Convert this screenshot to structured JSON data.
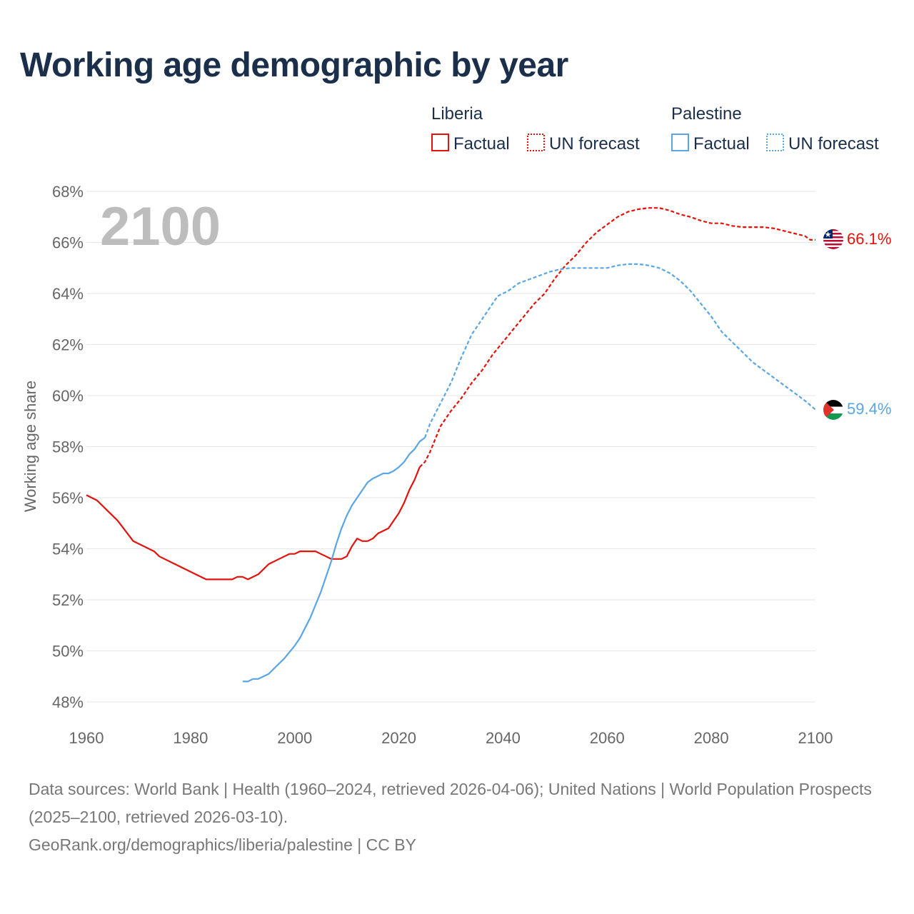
{
  "title": "Working age demographic by year",
  "footer": {
    "sources": "Data sources: World Bank | Health (1960–2024, retrieved 2026-04-06); United Nations | World Population Prospects (2025–2100, retrieved 2026-03-10).",
    "credit": "GeoRank.org/demographics/liberia/palestine | CC BY"
  },
  "colors": {
    "liberia": "#e3120b",
    "palestine": "#5aa5e3",
    "grid": "#e6e6e6",
    "text": "#1b2f4b"
  },
  "icons": {
    "liberia": "liberia-flag-icon",
    "palestine": "palestine-flag-icon"
  },
  "chart_data": {
    "type": "line",
    "title": "Working age demographic by year",
    "xlabel": "",
    "ylabel": "Working age share",
    "xlim": [
      1960,
      2100
    ],
    "ylim": [
      48,
      68
    ],
    "x_ticks": [
      "1960",
      "1980",
      "2000",
      "2020",
      "2040",
      "2060",
      "2080",
      "2100"
    ],
    "y_ticks": [
      "48%",
      "50%",
      "52%",
      "54%",
      "56%",
      "58%",
      "60%",
      "62%",
      "64%",
      "66%",
      "68%"
    ],
    "current_year": "2100",
    "legend": {
      "groups": [
        {
          "name": "Liberia",
          "factual": "Factual",
          "forecast": "UN forecast"
        },
        {
          "name": "Palestine",
          "factual": "Factual",
          "forecast": "UN forecast"
        }
      ]
    },
    "series": [
      {
        "name": "Liberia",
        "color": "#e3120b",
        "end_label": "66.1%",
        "factual": [
          [
            1960,
            56.1
          ],
          [
            1962,
            55.9
          ],
          [
            1963,
            55.7
          ],
          [
            1966,
            55.1
          ],
          [
            1969,
            54.3
          ],
          [
            1973,
            53.9
          ],
          [
            1974,
            53.7
          ],
          [
            1977,
            53.4
          ],
          [
            1980,
            53.1
          ],
          [
            1983,
            52.8
          ],
          [
            1988,
            52.8
          ],
          [
            1989,
            52.9
          ],
          [
            1990,
            52.9
          ],
          [
            1991,
            52.8
          ],
          [
            1993,
            53.0
          ],
          [
            1995,
            53.4
          ],
          [
            1997,
            53.6
          ],
          [
            1999,
            53.8
          ],
          [
            2000,
            53.8
          ],
          [
            2001,
            53.9
          ],
          [
            2004,
            53.9
          ],
          [
            2005,
            53.8
          ],
          [
            2007,
            53.6
          ],
          [
            2009,
            53.6
          ],
          [
            2010,
            53.7
          ],
          [
            2011,
            54.1
          ],
          [
            2012,
            54.4
          ],
          [
            2013,
            54.3
          ],
          [
            2014,
            54.3
          ],
          [
            2015,
            54.4
          ],
          [
            2016,
            54.6
          ],
          [
            2018,
            54.8
          ],
          [
            2020,
            55.4
          ],
          [
            2021,
            55.8
          ],
          [
            2022,
            56.3
          ],
          [
            2023,
            56.7
          ],
          [
            2024,
            57.2
          ]
        ],
        "forecast": [
          [
            2024,
            57.2
          ],
          [
            2025,
            57.4
          ],
          [
            2026,
            57.8
          ],
          [
            2027,
            58.3
          ],
          [
            2028,
            58.8
          ],
          [
            2030,
            59.4
          ],
          [
            2032,
            59.9
          ],
          [
            2034,
            60.5
          ],
          [
            2036,
            61.0
          ],
          [
            2038,
            61.6
          ],
          [
            2040,
            62.1
          ],
          [
            2042,
            62.6
          ],
          [
            2044,
            63.1
          ],
          [
            2046,
            63.6
          ],
          [
            2048,
            64.0
          ],
          [
            2050,
            64.6
          ],
          [
            2052,
            65.1
          ],
          [
            2054,
            65.5
          ],
          [
            2056,
            66.0
          ],
          [
            2058,
            66.4
          ],
          [
            2060,
            66.7
          ],
          [
            2062,
            67.0
          ],
          [
            2064,
            67.2
          ],
          [
            2066,
            67.3
          ],
          [
            2068,
            67.35
          ],
          [
            2070,
            67.35
          ],
          [
            2072,
            67.25
          ],
          [
            2074,
            67.1
          ],
          [
            2076,
            67.0
          ],
          [
            2078,
            66.85
          ],
          [
            2080,
            66.75
          ],
          [
            2082,
            66.75
          ],
          [
            2084,
            66.65
          ],
          [
            2086,
            66.6
          ],
          [
            2088,
            66.6
          ],
          [
            2090,
            66.6
          ],
          [
            2092,
            66.55
          ],
          [
            2094,
            66.45
          ],
          [
            2096,
            66.35
          ],
          [
            2098,
            66.25
          ],
          [
            2099,
            66.1
          ],
          [
            2100,
            66.1
          ]
        ]
      },
      {
        "name": "Palestine",
        "color": "#5aa5e3",
        "end_label": "59.4%",
        "factual": [
          [
            1990,
            48.8
          ],
          [
            1991,
            48.8
          ],
          [
            1992,
            48.9
          ],
          [
            1993,
            48.9
          ],
          [
            1995,
            49.1
          ],
          [
            1996,
            49.3
          ],
          [
            1998,
            49.7
          ],
          [
            2000,
            50.2
          ],
          [
            2001,
            50.5
          ],
          [
            2003,
            51.3
          ],
          [
            2005,
            52.3
          ],
          [
            2007,
            53.5
          ],
          [
            2008,
            54.2
          ],
          [
            2009,
            54.8
          ],
          [
            2010,
            55.3
          ],
          [
            2011,
            55.7
          ],
          [
            2012,
            56.0
          ],
          [
            2013,
            56.3
          ],
          [
            2014,
            56.6
          ],
          [
            2015,
            56.75
          ],
          [
            2016,
            56.85
          ],
          [
            2017,
            56.95
          ],
          [
            2018,
            56.95
          ],
          [
            2019,
            57.05
          ],
          [
            2020,
            57.2
          ],
          [
            2021,
            57.4
          ],
          [
            2022,
            57.7
          ],
          [
            2023,
            57.9
          ],
          [
            2024,
            58.2
          ],
          [
            2025,
            58.35
          ]
        ],
        "forecast": [
          [
            2025,
            58.35
          ],
          [
            2026,
            58.9
          ],
          [
            2028,
            59.7
          ],
          [
            2030,
            60.5
          ],
          [
            2032,
            61.5
          ],
          [
            2034,
            62.4
          ],
          [
            2036,
            63.0
          ],
          [
            2038,
            63.6
          ],
          [
            2039,
            63.9
          ],
          [
            2041,
            64.1
          ],
          [
            2043,
            64.4
          ],
          [
            2045,
            64.55
          ],
          [
            2047,
            64.7
          ],
          [
            2049,
            64.85
          ],
          [
            2051,
            64.95
          ],
          [
            2053,
            65.0
          ],
          [
            2056,
            65.0
          ],
          [
            2060,
            65.0
          ],
          [
            2062,
            65.1
          ],
          [
            2064,
            65.15
          ],
          [
            2066,
            65.15
          ],
          [
            2068,
            65.1
          ],
          [
            2070,
            65.0
          ],
          [
            2072,
            64.8
          ],
          [
            2074,
            64.5
          ],
          [
            2076,
            64.1
          ],
          [
            2078,
            63.6
          ],
          [
            2080,
            63.1
          ],
          [
            2082,
            62.5
          ],
          [
            2084,
            62.1
          ],
          [
            2086,
            61.7
          ],
          [
            2088,
            61.3
          ],
          [
            2090,
            61.0
          ],
          [
            2092,
            60.7
          ],
          [
            2094,
            60.4
          ],
          [
            2096,
            60.1
          ],
          [
            2098,
            59.8
          ],
          [
            2100,
            59.45
          ]
        ]
      }
    ]
  }
}
